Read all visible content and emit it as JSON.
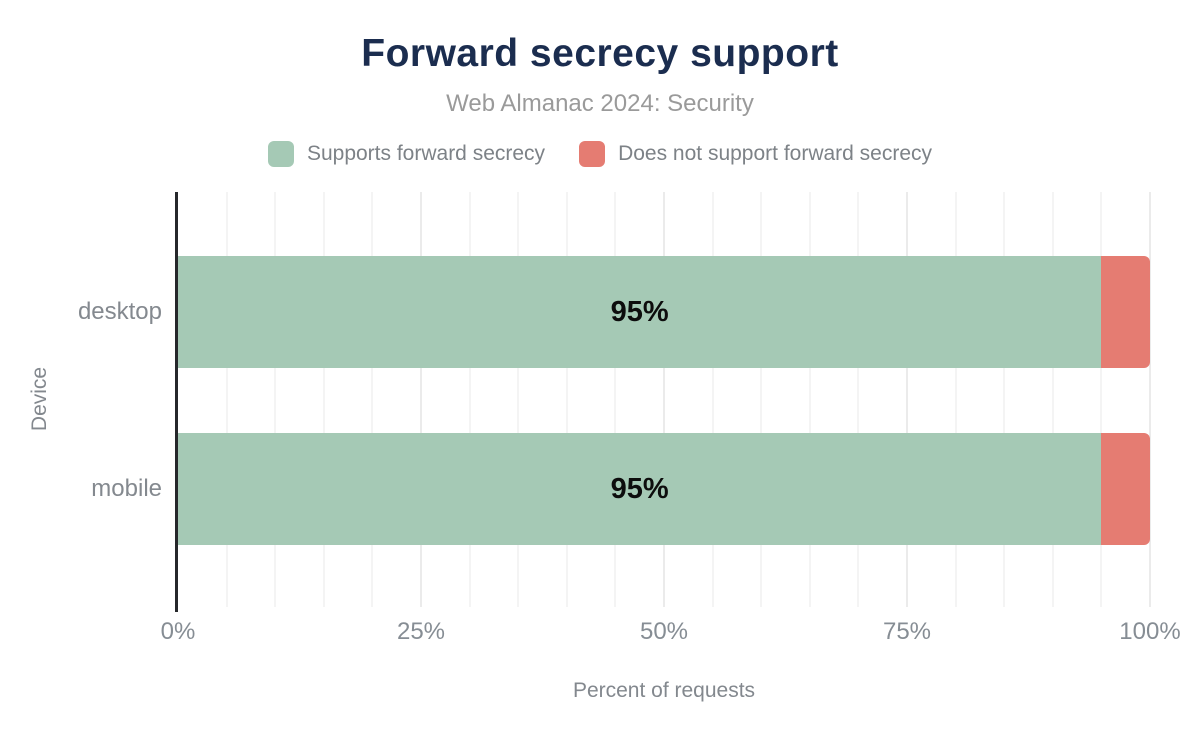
{
  "chart_data": {
    "type": "bar",
    "orientation": "horizontal",
    "stacked": true,
    "title": "Forward secrecy support",
    "subtitle": "Web Almanac 2024: Security",
    "categories": [
      "desktop",
      "mobile"
    ],
    "series": [
      {
        "name": "Supports forward secrecy",
        "color": "#a5c9b5",
        "values": [
          95,
          95
        ]
      },
      {
        "name": "Does not support forward secrecy",
        "color": "#e57c72",
        "values": [
          5,
          5
        ]
      }
    ],
    "bar_labels": [
      "95%",
      "95%"
    ],
    "xlabel": "Percent of requests",
    "ylabel": "Device",
    "xlim": [
      0,
      100
    ],
    "x_ticks": [
      "0%",
      "25%",
      "50%",
      "75%",
      "100%"
    ],
    "x_tick_values": [
      0,
      25,
      50,
      75,
      100
    ],
    "grid": "vertical, minor every 5%, on",
    "legend_position": "top"
  },
  "colors": {
    "title": "#1b2d4f",
    "subtitle": "#9a9a9a",
    "axis_line": "#26282b",
    "gridline_minor": "#f4f4f4",
    "gridline_major": "#ebebeb",
    "tick_text": "#868d94",
    "bar_label_text": "#0d0d0d"
  }
}
